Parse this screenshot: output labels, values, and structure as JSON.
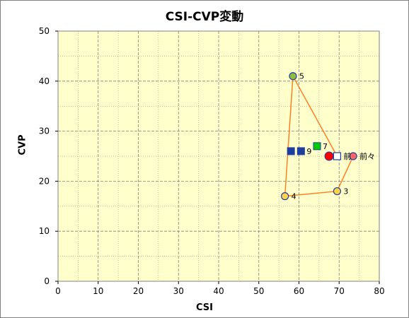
{
  "chart_data": {
    "type": "scatter",
    "title": "CSI-CVP変動",
    "xlabel": "CSI",
    "ylabel": "CVP",
    "xlim": [
      0,
      80
    ],
    "ylim": [
      0,
      50
    ],
    "xticks": [
      "0",
      "10",
      "20",
      "30",
      "40",
      "50",
      "60",
      "70",
      "80"
    ],
    "yticks": [
      "0",
      "10",
      "20",
      "30",
      "40",
      "50"
    ],
    "grid": true,
    "path": [
      {
        "x": 73.5,
        "y": 25,
        "label": "前々"
      },
      {
        "x": 69.5,
        "y": 18,
        "label": "3"
      },
      {
        "x": 56.5,
        "y": 17,
        "label": "4"
      },
      {
        "x": 58.5,
        "y": 41,
        "label": "5"
      },
      {
        "x": 69.5,
        "y": 25,
        "label": "前"
      }
    ],
    "points": [
      {
        "x": 64.5,
        "y": 27,
        "label": "7",
        "marker": "square",
        "color": "#00cc00"
      },
      {
        "x": 58,
        "y": 26,
        "label": "",
        "marker": "square",
        "color": "#1f3f9f"
      },
      {
        "x": 60.5,
        "y": 26,
        "label": "9",
        "marker": "square",
        "color": "#1f3f9f"
      },
      {
        "x": 67.5,
        "y": 25,
        "label": "",
        "marker": "circle",
        "color": "#ff0000"
      }
    ],
    "colors": {
      "plot_bg": "#ffffcc",
      "line": "#ff7f27",
      "grid": "#808080"
    }
  }
}
